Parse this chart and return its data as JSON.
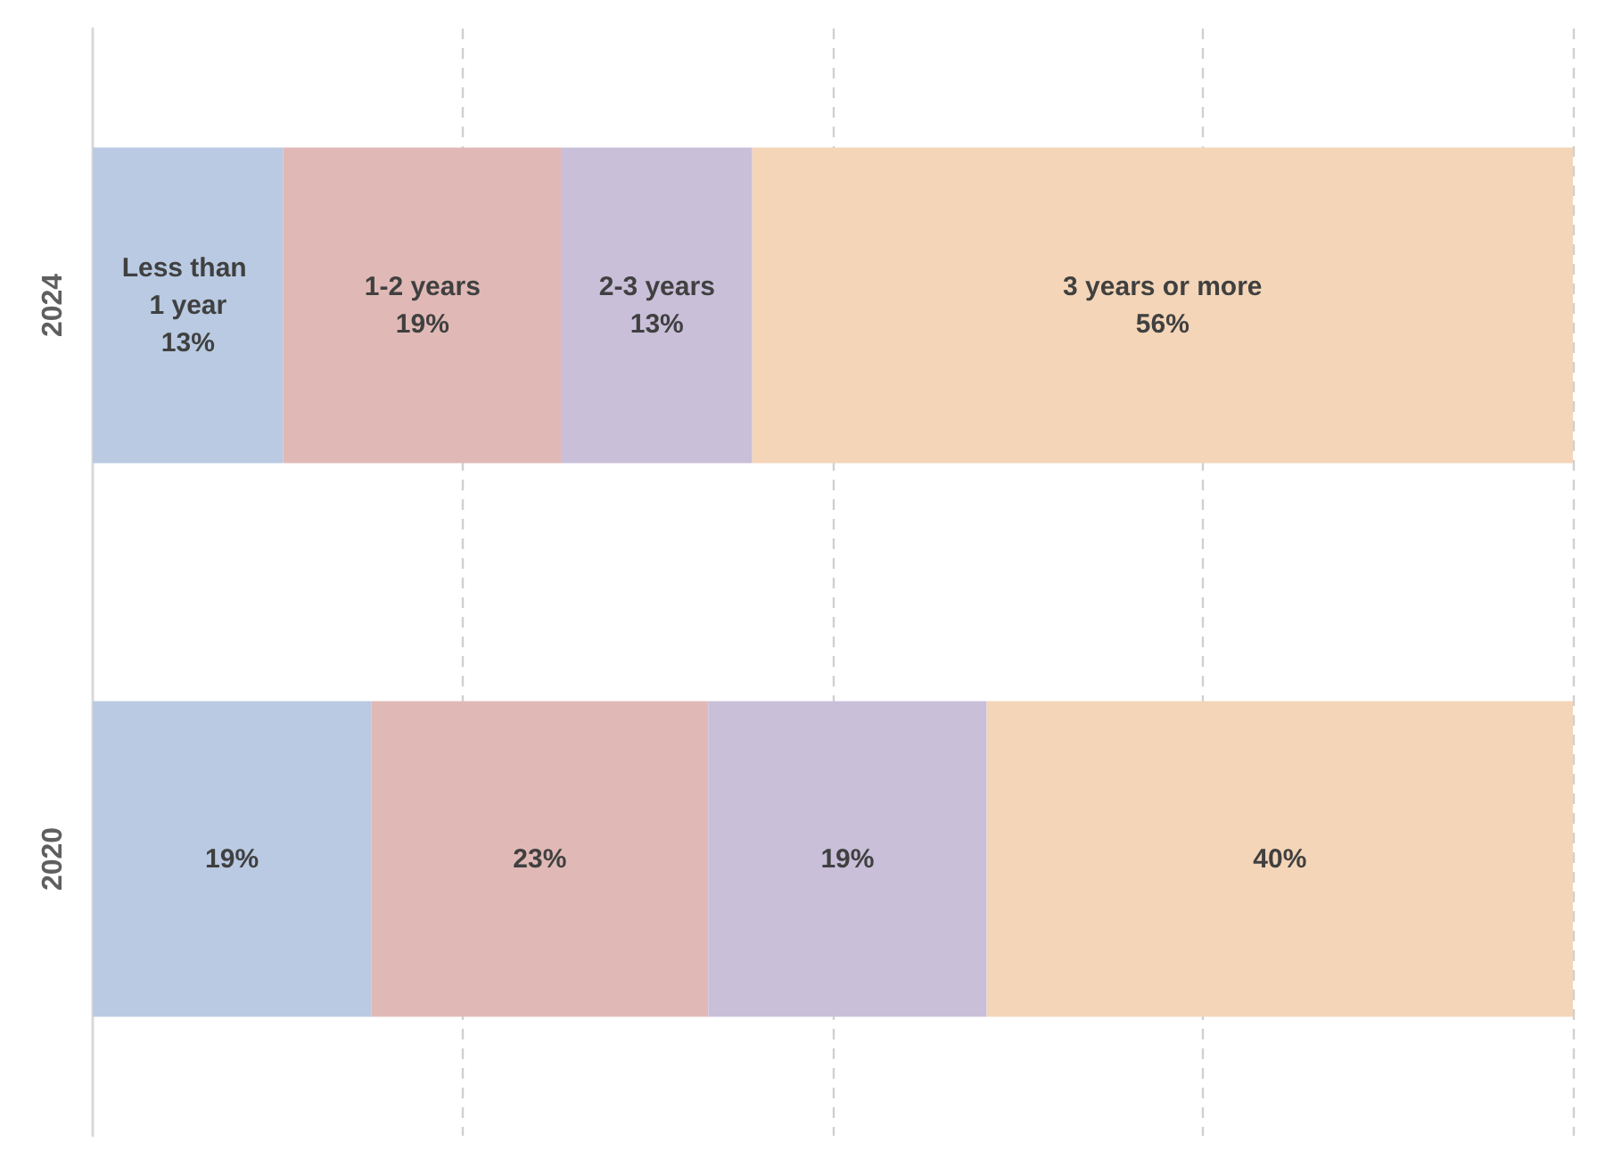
{
  "chart_data": {
    "type": "bar",
    "orientation": "horizontal",
    "stacked": true,
    "categories": [
      "2024",
      "2020"
    ],
    "series": [
      {
        "name": "Less than 1 year",
        "color": "#b9cae2",
        "values": [
          13,
          19
        ],
        "value_labels": [
          "13%",
          "19%"
        ]
      },
      {
        "name": "1-2 years",
        "color": "#e0b9b6",
        "values": [
          19,
          23
        ],
        "value_labels": [
          "19%",
          "23%"
        ]
      },
      {
        "name": "2-3 years",
        "color": "#c9bfd9",
        "values": [
          13,
          19
        ],
        "value_labels": [
          "13%",
          "19%"
        ]
      },
      {
        "name": "3 years or more",
        "color": "#f4d5b8",
        "values": [
          56,
          40
        ],
        "value_labels": [
          "56%",
          "40%"
        ]
      }
    ],
    "xlim": [
      0,
      101
    ],
    "xticks": [
      {
        "value": 25.25,
        "label": null
      },
      {
        "value": 50.5,
        "label": null
      },
      {
        "value": 75.75,
        "label": null
      },
      {
        "value": 101,
        "label": null
      }
    ],
    "grid": "x",
    "tick_labels": "y"
  }
}
